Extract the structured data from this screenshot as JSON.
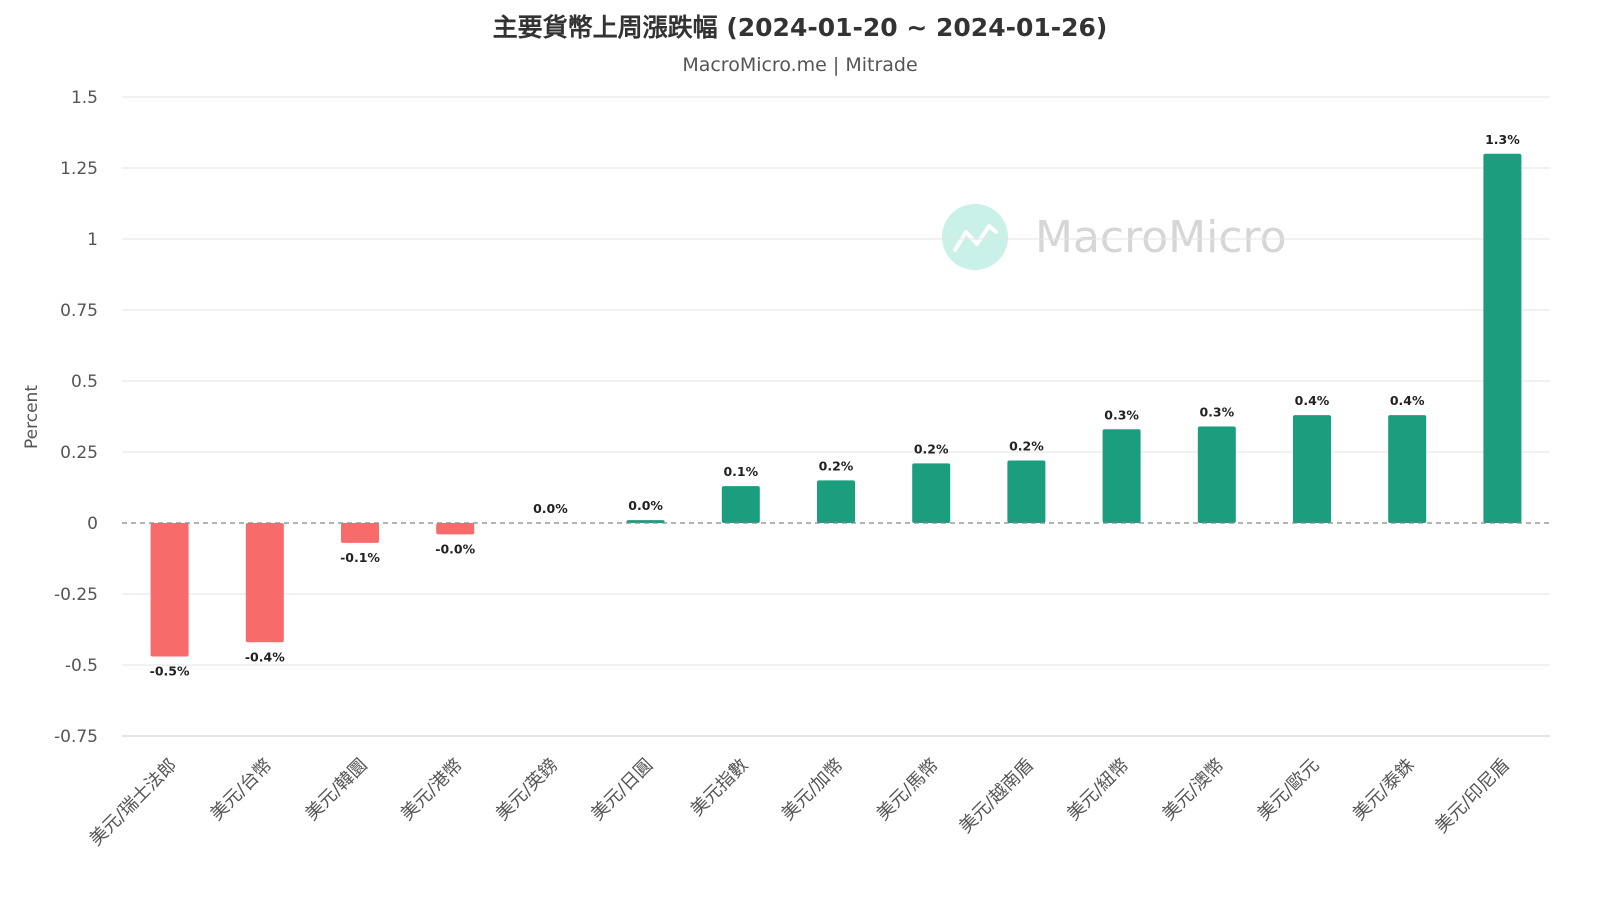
{
  "title": "主要貨幣上周漲跌幅 (2024-01-20 ~ 2024-01-26)",
  "subtitle": "MacroMicro.me | Mitrade",
  "watermark": "MacroMicro",
  "colors": {
    "positive": "#1a9e7e",
    "negative": "#f76b6b",
    "watermark_icon": "#c9f1e7"
  },
  "chart_data": {
    "type": "bar",
    "ylabel": "Percent",
    "xlabel": "",
    "ylim": [
      -0.75,
      1.5
    ],
    "yticks": [
      1.5,
      1.25,
      1,
      0.75,
      0.5,
      0.25,
      0,
      -0.25,
      -0.5,
      -0.75
    ],
    "ytick_labels": [
      "1.5",
      "1.25",
      "1",
      "0.75",
      "0.5",
      "0.25",
      "0",
      "-0.25",
      "-0.5",
      "-0.75"
    ],
    "grid": true,
    "zero_line": "dashed",
    "categories": [
      "美元/瑞士法郎",
      "美元/台幣",
      "美元/韓圜",
      "美元/港幣",
      "美元/英鎊",
      "美元/日圓",
      "美元指數",
      "美元/加幣",
      "美元/馬幣",
      "美元/越南盾",
      "美元/紐幣",
      "美元/澳幣",
      "美元/歐元",
      "美元/泰銖",
      "美元/印尼盾"
    ],
    "values": [
      -0.47,
      -0.42,
      -0.07,
      -0.04,
      0.0,
      0.01,
      0.13,
      0.15,
      0.21,
      0.22,
      0.33,
      0.34,
      0.38,
      0.38,
      1.3
    ],
    "data_labels": [
      "-0.5%",
      "-0.4%",
      "-0.1%",
      "-0.0%",
      "0.0%",
      "0.0%",
      "0.1%",
      "0.2%",
      "0.2%",
      "0.2%",
      "0.3%",
      "0.3%",
      "0.4%",
      "0.4%",
      "1.3%"
    ]
  }
}
